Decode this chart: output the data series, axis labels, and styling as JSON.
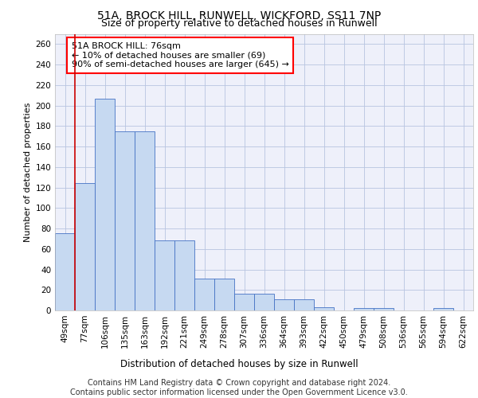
{
  "title1": "51A, BROCK HILL, RUNWELL, WICKFORD, SS11 7NP",
  "title2": "Size of property relative to detached houses in Runwell",
  "xlabel": "Distribution of detached houses by size in Runwell",
  "ylabel": "Number of detached properties",
  "categories": [
    "49sqm",
    "77sqm",
    "106sqm",
    "135sqm",
    "163sqm",
    "192sqm",
    "221sqm",
    "249sqm",
    "278sqm",
    "307sqm",
    "336sqm",
    "364sqm",
    "393sqm",
    "422sqm",
    "450sqm",
    "479sqm",
    "508sqm",
    "536sqm",
    "565sqm",
    "594sqm",
    "622sqm"
  ],
  "values": [
    75,
    124,
    207,
    175,
    175,
    68,
    68,
    31,
    31,
    16,
    16,
    11,
    11,
    3,
    0,
    2,
    2,
    0,
    0,
    2,
    0
  ],
  "bar_color": "#c6d9f1",
  "bar_edge_color": "#4472c4",
  "red_line_index": 0.5,
  "annotation_text": "51A BROCK HILL: 76sqm\n← 10% of detached houses are smaller (69)\n90% of semi-detached houses are larger (645) →",
  "annotation_box_color": "white",
  "annotation_box_edge_color": "red",
  "ylim": [
    0,
    270
  ],
  "yticks": [
    0,
    20,
    40,
    60,
    80,
    100,
    120,
    140,
    160,
    180,
    200,
    220,
    240,
    260
  ],
  "grid_color": "#b8c4e0",
  "background_color": "#eef0fa",
  "footer_text": "Contains HM Land Registry data © Crown copyright and database right 2024.\nContains public sector information licensed under the Open Government Licence v3.0.",
  "title1_fontsize": 10,
  "title2_fontsize": 9,
  "xlabel_fontsize": 8.5,
  "ylabel_fontsize": 8,
  "tick_fontsize": 7.5,
  "annotation_fontsize": 8,
  "footer_fontsize": 7
}
